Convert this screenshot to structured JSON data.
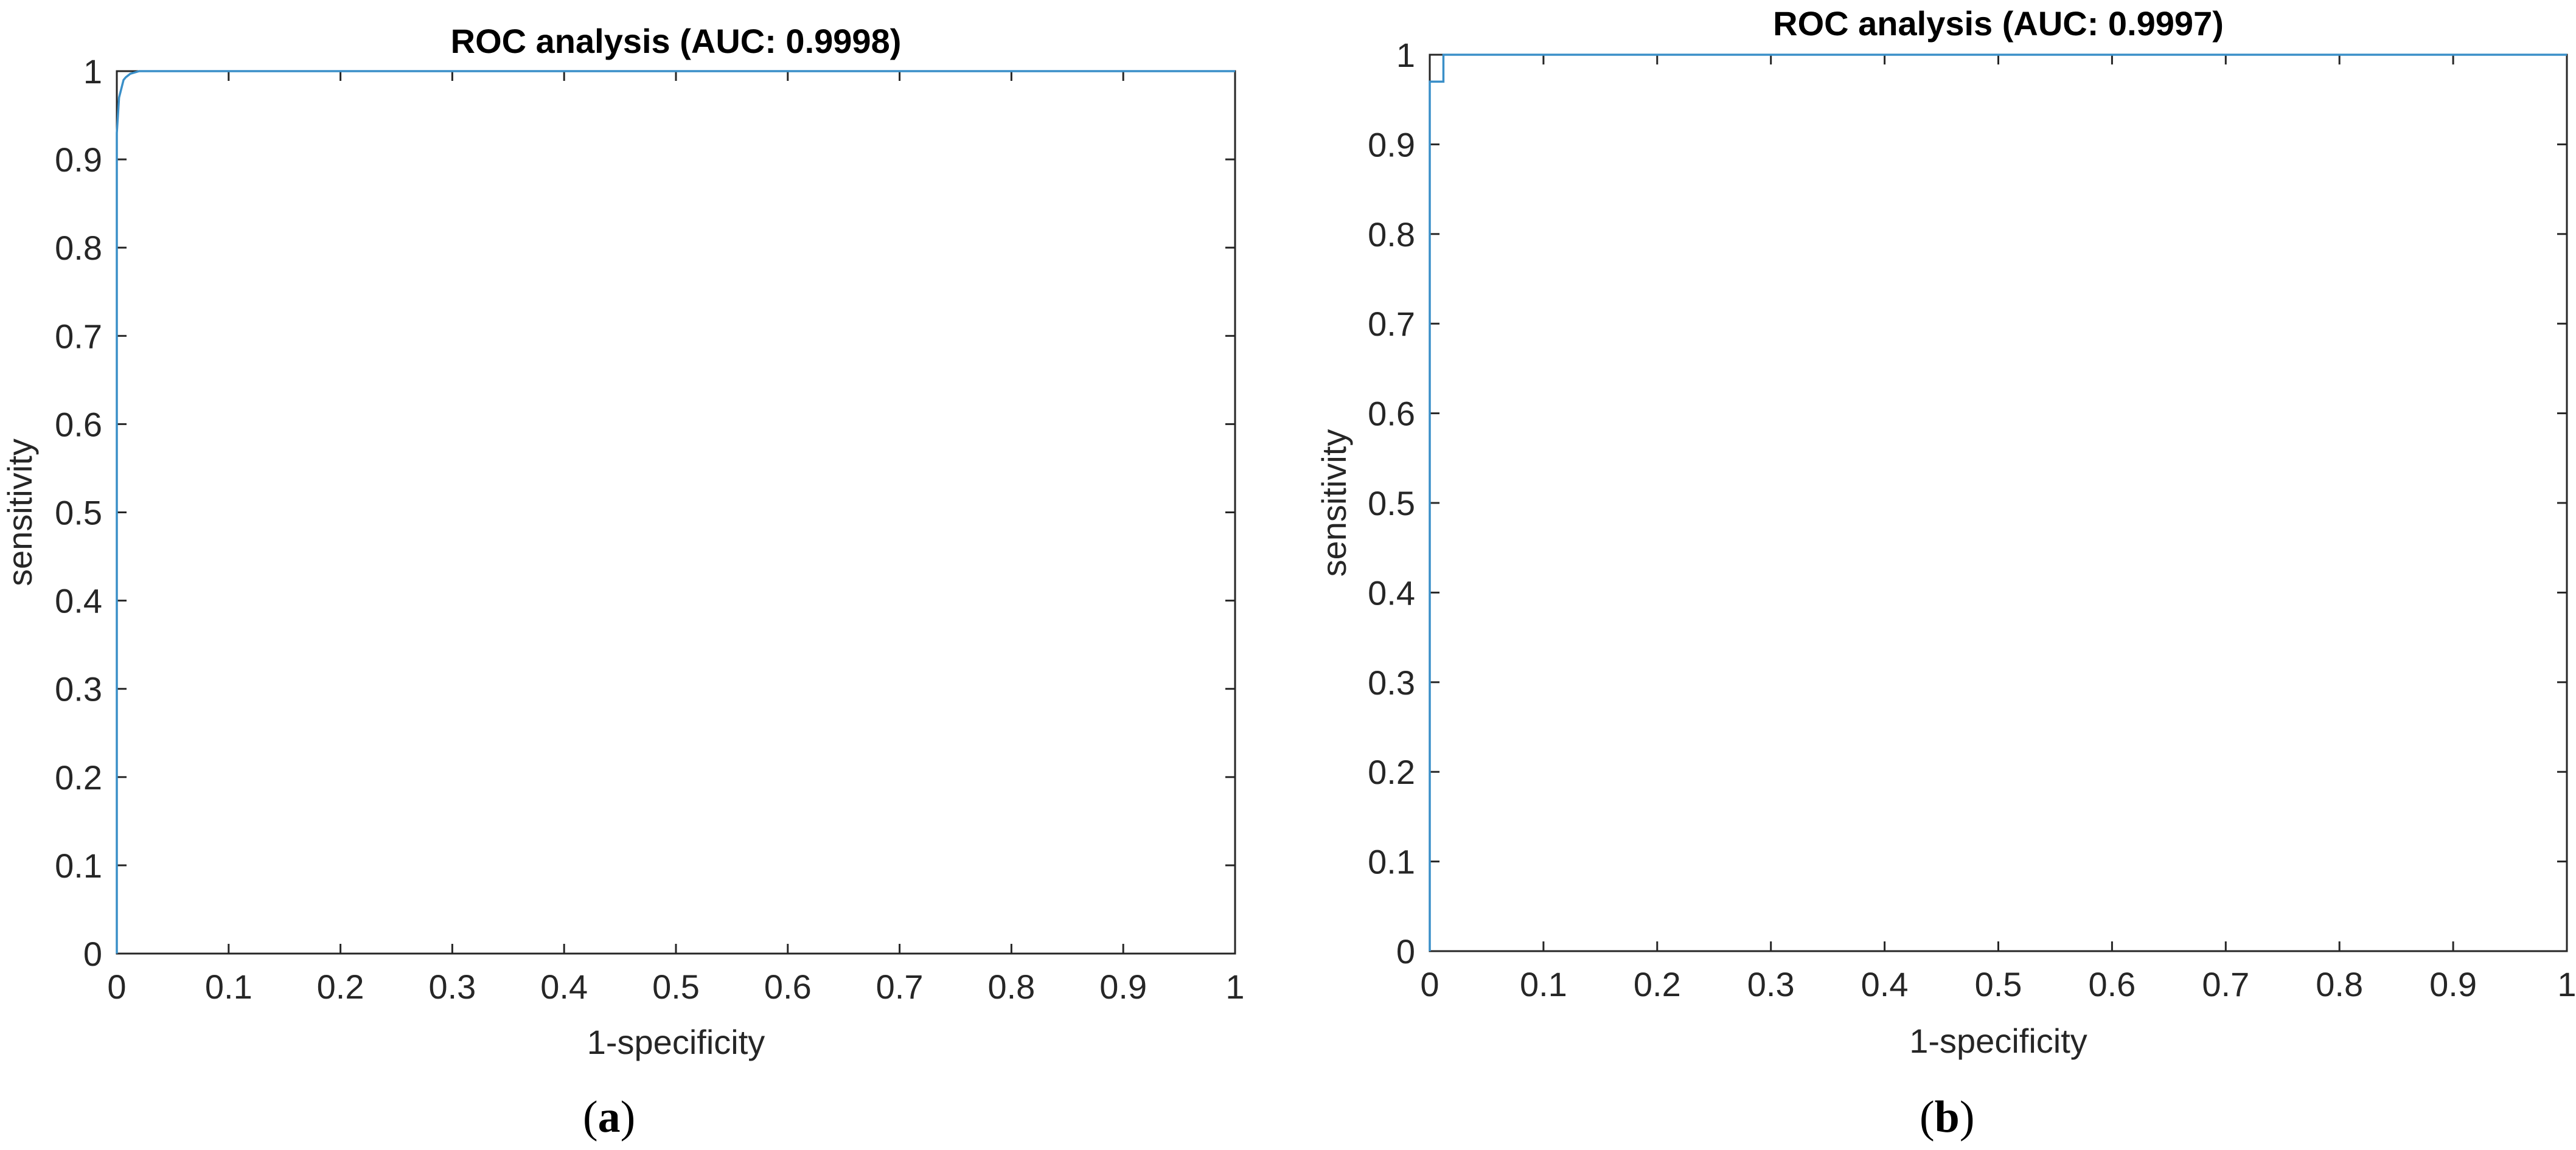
{
  "chart_data": [
    {
      "type": "line",
      "title": "ROC analysis (AUC: 0.9998)",
      "xlabel": "1-specificity",
      "ylabel": "sensitivity",
      "xlim": [
        0,
        1
      ],
      "ylim": [
        0,
        1
      ],
      "xticks": [
        "0",
        "0.1",
        "0.2",
        "0.3",
        "0.4",
        "0.5",
        "0.6",
        "0.7",
        "0.8",
        "0.9",
        "1"
      ],
      "yticks": [
        "0",
        "0.1",
        "0.2",
        "0.3",
        "0.4",
        "0.5",
        "0.6",
        "0.7",
        "0.8",
        "0.9",
        "1"
      ],
      "grid": false,
      "color": "#3a8fc8",
      "series": [
        {
          "x": [
            0,
            0,
            0.002,
            0.004,
            0.006,
            0.008,
            0.012,
            0.02,
            1
          ],
          "y": [
            0,
            0.93,
            0.97,
            0.98,
            0.99,
            0.993,
            0.997,
            1,
            1
          ]
        }
      ],
      "caption_label": "a"
    },
    {
      "type": "line",
      "title": "ROC analysis (AUC: 0.9997)",
      "xlabel": "1-specificity",
      "ylabel": "sensitivity",
      "xlim": [
        0,
        1
      ],
      "ylim": [
        0,
        1
      ],
      "xticks": [
        "0",
        "0.1",
        "0.2",
        "0.3",
        "0.4",
        "0.5",
        "0.6",
        "0.7",
        "0.8",
        "0.9",
        "1"
      ],
      "yticks": [
        "0",
        "0.1",
        "0.2",
        "0.3",
        "0.4",
        "0.5",
        "0.6",
        "0.7",
        "0.8",
        "0.9",
        "1"
      ],
      "grid": false,
      "color": "#3a8fc8",
      "series": [
        {
          "x": [
            0,
            0,
            0.012,
            0.012,
            1
          ],
          "y": [
            0,
            0.97,
            0.97,
            1,
            1
          ]
        }
      ],
      "caption_label": "b"
    }
  ]
}
